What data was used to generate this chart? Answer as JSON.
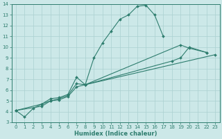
{
  "color": "#2e7d6e",
  "bg_color": "#cce8e8",
  "grid_color": "#aad0d0",
  "xlabel": "Humidex (Indice chaleur)",
  "ylim": [
    3,
    14
  ],
  "xlim": [
    -0.5,
    23.5
  ],
  "yticks": [
    3,
    4,
    5,
    6,
    7,
    8,
    9,
    10,
    11,
    12,
    13,
    14
  ],
  "xticks": [
    0,
    1,
    2,
    3,
    4,
    5,
    6,
    7,
    8,
    9,
    10,
    11,
    12,
    13,
    14,
    15,
    16,
    17,
    18,
    19,
    20,
    21,
    22,
    23
  ],
  "line1_x": [
    0,
    1,
    2,
    3,
    4,
    5,
    6,
    7,
    8,
    9,
    10,
    11,
    12,
    13,
    14,
    15,
    16,
    17
  ],
  "line1_y": [
    4.1,
    3.5,
    4.3,
    4.7,
    5.2,
    5.3,
    5.6,
    7.2,
    6.5,
    9.0,
    10.4,
    11.5,
    12.6,
    13.0,
    13.8,
    13.9,
    13.0,
    11.0
  ],
  "line2_x": [
    0,
    3,
    4,
    5,
    6,
    7,
    8,
    19,
    20,
    22
  ],
  "line2_y": [
    4.1,
    4.7,
    5.0,
    5.2,
    5.5,
    6.6,
    6.5,
    10.2,
    9.9,
    9.5
  ],
  "line3_x": [
    0,
    3,
    4,
    5,
    6,
    7,
    8,
    23
  ],
  "line3_y": [
    4.1,
    4.5,
    5.0,
    5.1,
    5.4,
    6.3,
    6.5,
    9.3
  ],
  "line4_x": [
    8,
    18,
    19,
    20,
    22
  ],
  "line4_y": [
    6.5,
    8.7,
    9.0,
    10.0,
    9.5
  ],
  "tick_fontsize": 5.0,
  "xlabel_fontsize": 6.0,
  "linewidth": 0.8,
  "markersize": 2.0
}
